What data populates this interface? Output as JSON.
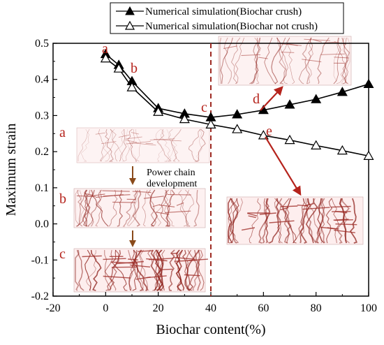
{
  "chart_data": {
    "type": "line",
    "xlabel": "Biochar content(%)",
    "ylabel": "Maximum strain",
    "xlim": [
      -20,
      100
    ],
    "ylim": [
      -0.2,
      0.5
    ],
    "xticks": [
      "-20",
      "0",
      "20",
      "40",
      "60",
      "80",
      "100"
    ],
    "yticks": [
      "-0.2",
      "-0.1",
      "0.0",
      "0.1",
      "0.2",
      "0.3",
      "0.4",
      "0.5"
    ],
    "legend_position": "top",
    "series": [
      {
        "name": "Numerical simulation(Biochar crush)",
        "marker": "filled-triangle",
        "x": [
          0,
          5,
          10,
          20,
          30,
          40,
          50,
          60,
          70,
          80,
          90,
          100
        ],
        "y": [
          0.47,
          0.44,
          0.395,
          0.32,
          0.305,
          0.295,
          0.303,
          0.315,
          0.33,
          0.345,
          0.365,
          0.387
        ]
      },
      {
        "name": "Numerical simulation(Biochar  not crush)",
        "marker": "open-triangle",
        "x": [
          0,
          5,
          10,
          20,
          30,
          40,
          50,
          60,
          70,
          80,
          90,
          100
        ],
        "y": [
          0.458,
          0.43,
          0.378,
          0.31,
          0.29,
          0.275,
          0.262,
          0.245,
          0.232,
          0.217,
          0.203,
          0.188
        ]
      }
    ],
    "reference_line": {
      "x": 40,
      "style": "dashed",
      "color": "#9e2a22"
    },
    "point_labels": [
      {
        "text": "a",
        "x": 0,
        "y": 0.47
      },
      {
        "text": "b",
        "x": 10,
        "y": 0.395
      },
      {
        "text": "c",
        "x": 40,
        "y": 0.295
      },
      {
        "text": "d",
        "x": 60,
        "y": 0.315
      },
      {
        "text": "e",
        "x": 60,
        "y": 0.245
      }
    ],
    "inset_labels": [
      "a",
      "b",
      "c"
    ],
    "annotation": [
      "Power chain",
      "development"
    ],
    "colors": {
      "accent": "#b5231c",
      "line": "#000000",
      "network": "#8a1a14"
    }
  }
}
